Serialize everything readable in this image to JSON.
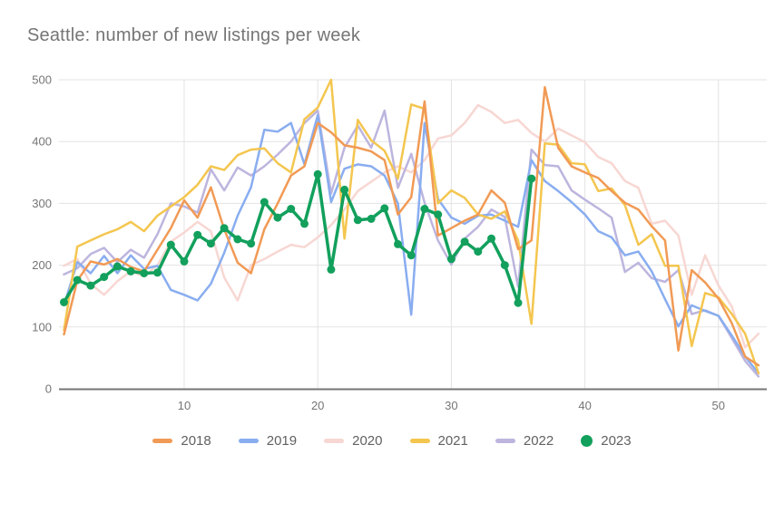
{
  "title": "Seattle: number of new listings per week",
  "chart_data": {
    "type": "line",
    "title": "Seattle: number of new listings per week",
    "xlabel": "",
    "ylabel": "",
    "x_axis": {
      "min": 1,
      "max": 53,
      "ticks": [
        10,
        20,
        30,
        40,
        50
      ],
      "unit": "week number"
    },
    "y_axis": {
      "min": 0,
      "max": 500,
      "ticks": [
        0,
        100,
        200,
        300,
        400,
        500
      ]
    },
    "grid": true,
    "legend_position": "bottom",
    "axis_color": "#757575",
    "grid_color": "#e3e3e3",
    "series": [
      {
        "name": "2020",
        "color": "#f7d7d3",
        "style": "line",
        "values": [
          199,
          210,
          170,
          152,
          174,
          190,
          182,
          200,
          238,
          253,
          270,
          255,
          180,
          143,
          200,
          210,
          222,
          233,
          229,
          245,
          265,
          290,
          320,
          335,
          350,
          360,
          350,
          370,
          405,
          410,
          430,
          459,
          448,
          430,
          435,
          414,
          400,
          421,
          410,
          399,
          375,
          365,
          336,
          325,
          267,
          272,
          248,
          152,
          216,
          167,
          133,
          67,
          89
        ]
      },
      {
        "name": "2022",
        "color": "#bdb5de",
        "style": "line",
        "values": [
          185,
          195,
          218,
          228,
          205,
          225,
          212,
          250,
          300,
          295,
          285,
          355,
          321,
          358,
          345,
          360,
          379,
          400,
          430,
          450,
          316,
          390,
          426,
          390,
          450,
          325,
          380,
          301,
          240,
          201,
          243,
          262,
          290,
          278,
          165,
          387,
          362,
          360,
          321,
          306,
          292,
          277,
          189,
          204,
          179,
          173,
          192,
          121,
          127,
          118,
          82,
          45,
          20
        ]
      },
      {
        "name": "2019",
        "color": "#89adf0",
        "style": "line",
        "values": [
          135,
          205,
          187,
          215,
          187,
          216,
          194,
          199,
          160,
          152,
          143,
          170,
          220,
          280,
          326,
          419,
          416,
          430,
          363,
          443,
          302,
          356,
          363,
          360,
          345,
          300,
          120,
          430,
          307,
          277,
          267,
          280,
          282,
          272,
          262,
          370,
          336,
          320,
          302,
          282,
          255,
          245,
          216,
          222,
          190,
          145,
          101,
          135,
          126,
          118,
          86,
          52,
          25
        ]
      },
      {
        "name": "2021",
        "color": "#f4c64f",
        "style": "line",
        "values": [
          95,
          230,
          240,
          250,
          258,
          270,
          255,
          280,
          295,
          310,
          330,
          360,
          354,
          378,
          387,
          389,
          365,
          350,
          436,
          455,
          500,
          243,
          435,
          402,
          385,
          340,
          460,
          453,
          300,
          321,
          309,
          282,
          275,
          287,
          240,
          105,
          397,
          395,
          365,
          363,
          320,
          324,
          297,
          233,
          250,
          199,
          199,
          69,
          155,
          148,
          121,
          89,
          25
        ]
      },
      {
        "name": "2018",
        "color": "#f19a55",
        "style": "line",
        "values": [
          88,
          175,
          206,
          201,
          210,
          197,
          190,
          225,
          260,
          305,
          277,
          326,
          258,
          204,
          187,
          258,
          300,
          345,
          360,
          430,
          415,
          394,
          390,
          384,
          370,
          282,
          310,
          465,
          248,
          260,
          272,
          282,
          321,
          301,
          226,
          240,
          488,
          390,
          360,
          350,
          341,
          320,
          301,
          290,
          263,
          240,
          62,
          192,
          172,
          146,
          106,
          52,
          38
        ]
      },
      {
        "name": "2023",
        "color": "#12a05c",
        "style": "line-markers",
        "values": [
          140,
          176,
          167,
          181,
          198,
          190,
          187,
          188,
          233,
          206,
          249,
          235,
          260,
          242,
          235,
          302,
          277,
          291,
          267,
          347,
          193,
          322,
          273,
          275,
          292,
          234,
          216,
          291,
          282,
          210,
          238,
          222,
          243,
          200,
          139,
          340
        ]
      }
    ]
  },
  "legend": {
    "order": [
      "2018",
      "2019",
      "2020",
      "2021",
      "2022",
      "2023"
    ]
  }
}
